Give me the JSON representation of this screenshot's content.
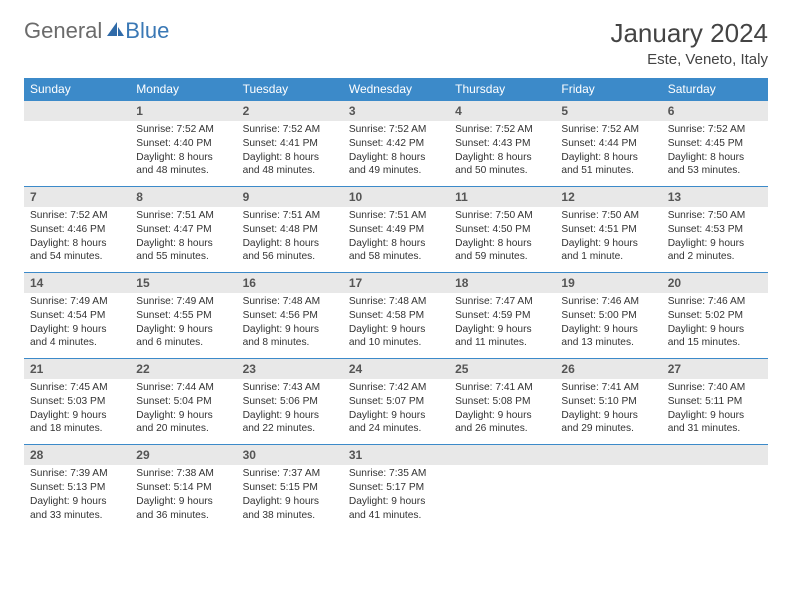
{
  "brand": {
    "word1": "General",
    "word2": "Blue"
  },
  "title": "January 2024",
  "location": "Este, Veneto, Italy",
  "colors": {
    "header_bg": "#3c8ac9",
    "header_text": "#ffffff",
    "daynum_bg": "#e8e8e8",
    "border": "#3c8ac9",
    "text": "#333333"
  },
  "day_headers": [
    "Sunday",
    "Monday",
    "Tuesday",
    "Wednesday",
    "Thursday",
    "Friday",
    "Saturday"
  ],
  "weeks": [
    {
      "nums": [
        "",
        "1",
        "2",
        "3",
        "4",
        "5",
        "6"
      ],
      "cells": [
        null,
        {
          "sr": "Sunrise: 7:52 AM",
          "ss": "Sunset: 4:40 PM",
          "dl": "Daylight: 8 hours and 48 minutes."
        },
        {
          "sr": "Sunrise: 7:52 AM",
          "ss": "Sunset: 4:41 PM",
          "dl": "Daylight: 8 hours and 48 minutes."
        },
        {
          "sr": "Sunrise: 7:52 AM",
          "ss": "Sunset: 4:42 PM",
          "dl": "Daylight: 8 hours and 49 minutes."
        },
        {
          "sr": "Sunrise: 7:52 AM",
          "ss": "Sunset: 4:43 PM",
          "dl": "Daylight: 8 hours and 50 minutes."
        },
        {
          "sr": "Sunrise: 7:52 AM",
          "ss": "Sunset: 4:44 PM",
          "dl": "Daylight: 8 hours and 51 minutes."
        },
        {
          "sr": "Sunrise: 7:52 AM",
          "ss": "Sunset: 4:45 PM",
          "dl": "Daylight: 8 hours and 53 minutes."
        }
      ]
    },
    {
      "nums": [
        "7",
        "8",
        "9",
        "10",
        "11",
        "12",
        "13"
      ],
      "cells": [
        {
          "sr": "Sunrise: 7:52 AM",
          "ss": "Sunset: 4:46 PM",
          "dl": "Daylight: 8 hours and 54 minutes."
        },
        {
          "sr": "Sunrise: 7:51 AM",
          "ss": "Sunset: 4:47 PM",
          "dl": "Daylight: 8 hours and 55 minutes."
        },
        {
          "sr": "Sunrise: 7:51 AM",
          "ss": "Sunset: 4:48 PM",
          "dl": "Daylight: 8 hours and 56 minutes."
        },
        {
          "sr": "Sunrise: 7:51 AM",
          "ss": "Sunset: 4:49 PM",
          "dl": "Daylight: 8 hours and 58 minutes."
        },
        {
          "sr": "Sunrise: 7:50 AM",
          "ss": "Sunset: 4:50 PM",
          "dl": "Daylight: 8 hours and 59 minutes."
        },
        {
          "sr": "Sunrise: 7:50 AM",
          "ss": "Sunset: 4:51 PM",
          "dl": "Daylight: 9 hours and 1 minute."
        },
        {
          "sr": "Sunrise: 7:50 AM",
          "ss": "Sunset: 4:53 PM",
          "dl": "Daylight: 9 hours and 2 minutes."
        }
      ]
    },
    {
      "nums": [
        "14",
        "15",
        "16",
        "17",
        "18",
        "19",
        "20"
      ],
      "cells": [
        {
          "sr": "Sunrise: 7:49 AM",
          "ss": "Sunset: 4:54 PM",
          "dl": "Daylight: 9 hours and 4 minutes."
        },
        {
          "sr": "Sunrise: 7:49 AM",
          "ss": "Sunset: 4:55 PM",
          "dl": "Daylight: 9 hours and 6 minutes."
        },
        {
          "sr": "Sunrise: 7:48 AM",
          "ss": "Sunset: 4:56 PM",
          "dl": "Daylight: 9 hours and 8 minutes."
        },
        {
          "sr": "Sunrise: 7:48 AM",
          "ss": "Sunset: 4:58 PM",
          "dl": "Daylight: 9 hours and 10 minutes."
        },
        {
          "sr": "Sunrise: 7:47 AM",
          "ss": "Sunset: 4:59 PM",
          "dl": "Daylight: 9 hours and 11 minutes."
        },
        {
          "sr": "Sunrise: 7:46 AM",
          "ss": "Sunset: 5:00 PM",
          "dl": "Daylight: 9 hours and 13 minutes."
        },
        {
          "sr": "Sunrise: 7:46 AM",
          "ss": "Sunset: 5:02 PM",
          "dl": "Daylight: 9 hours and 15 minutes."
        }
      ]
    },
    {
      "nums": [
        "21",
        "22",
        "23",
        "24",
        "25",
        "26",
        "27"
      ],
      "cells": [
        {
          "sr": "Sunrise: 7:45 AM",
          "ss": "Sunset: 5:03 PM",
          "dl": "Daylight: 9 hours and 18 minutes."
        },
        {
          "sr": "Sunrise: 7:44 AM",
          "ss": "Sunset: 5:04 PM",
          "dl": "Daylight: 9 hours and 20 minutes."
        },
        {
          "sr": "Sunrise: 7:43 AM",
          "ss": "Sunset: 5:06 PM",
          "dl": "Daylight: 9 hours and 22 minutes."
        },
        {
          "sr": "Sunrise: 7:42 AM",
          "ss": "Sunset: 5:07 PM",
          "dl": "Daylight: 9 hours and 24 minutes."
        },
        {
          "sr": "Sunrise: 7:41 AM",
          "ss": "Sunset: 5:08 PM",
          "dl": "Daylight: 9 hours and 26 minutes."
        },
        {
          "sr": "Sunrise: 7:41 AM",
          "ss": "Sunset: 5:10 PM",
          "dl": "Daylight: 9 hours and 29 minutes."
        },
        {
          "sr": "Sunrise: 7:40 AM",
          "ss": "Sunset: 5:11 PM",
          "dl": "Daylight: 9 hours and 31 minutes."
        }
      ]
    },
    {
      "nums": [
        "28",
        "29",
        "30",
        "31",
        "",
        "",
        ""
      ],
      "cells": [
        {
          "sr": "Sunrise: 7:39 AM",
          "ss": "Sunset: 5:13 PM",
          "dl": "Daylight: 9 hours and 33 minutes."
        },
        {
          "sr": "Sunrise: 7:38 AM",
          "ss": "Sunset: 5:14 PM",
          "dl": "Daylight: 9 hours and 36 minutes."
        },
        {
          "sr": "Sunrise: 7:37 AM",
          "ss": "Sunset: 5:15 PM",
          "dl": "Daylight: 9 hours and 38 minutes."
        },
        {
          "sr": "Sunrise: 7:35 AM",
          "ss": "Sunset: 5:17 PM",
          "dl": "Daylight: 9 hours and 41 minutes."
        },
        null,
        null,
        null
      ]
    }
  ]
}
